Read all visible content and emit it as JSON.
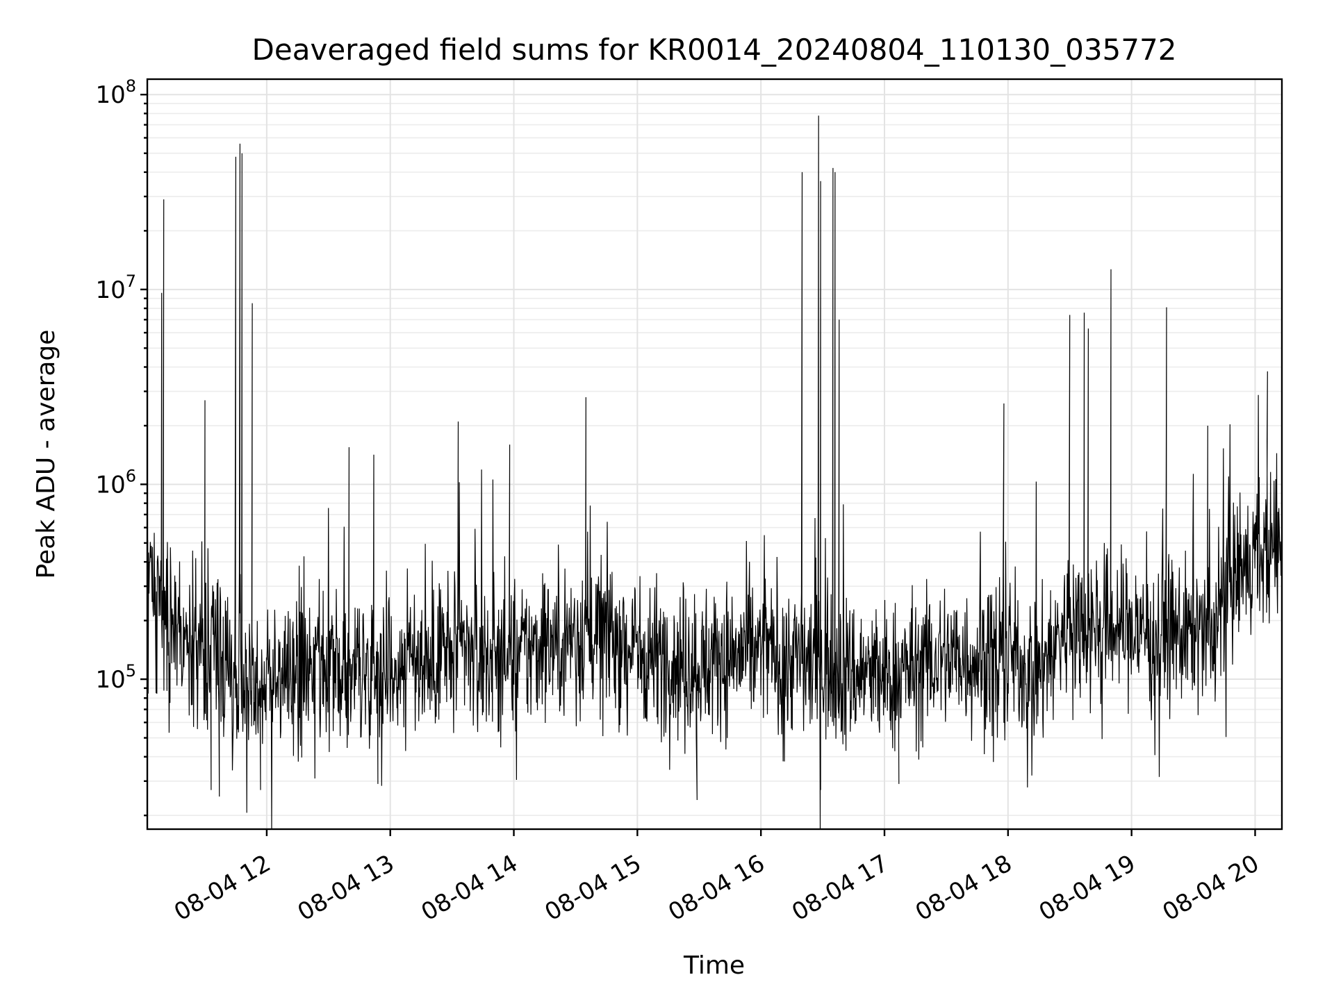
{
  "chart_data": {
    "type": "line",
    "title": "Deaveraged field sums for KR0014_20240804_110130_035772",
    "xlabel": "Time",
    "ylabel": "Peak ADU - average",
    "y_scale": "log",
    "ylim": [
      17000,
      120000000
    ],
    "xlim": [
      "2024-08-04T11:02:00",
      "2024-08-04T20:13:00"
    ],
    "grid": true,
    "x_ticks": [
      {
        "time": "2024-08-04T12:00:00",
        "label": "08-04 12"
      },
      {
        "time": "2024-08-04T13:00:00",
        "label": "08-04 13"
      },
      {
        "time": "2024-08-04T14:00:00",
        "label": "08-04 14"
      },
      {
        "time": "2024-08-04T15:00:00",
        "label": "08-04 15"
      },
      {
        "time": "2024-08-04T16:00:00",
        "label": "08-04 16"
      },
      {
        "time": "2024-08-04T17:00:00",
        "label": "08-04 17"
      },
      {
        "time": "2024-08-04T18:00:00",
        "label": "08-04 18"
      },
      {
        "time": "2024-08-04T19:00:00",
        "label": "08-04 19"
      },
      {
        "time": "2024-08-04T20:00:00",
        "label": "08-04 20"
      }
    ],
    "y_ticks": [
      {
        "value": 100000,
        "base": "10",
        "exp": "5"
      },
      {
        "value": 1000000,
        "base": "10",
        "exp": "6"
      },
      {
        "value": 10000000,
        "base": "10",
        "exp": "7"
      },
      {
        "value": 100000000,
        "base": "10",
        "exp": "8"
      }
    ],
    "series": [
      {
        "color": "#000000",
        "baseline": [
          [
            "2024-08-04T11:02:00",
            300000
          ],
          [
            "2024-08-04T11:10:00",
            200000
          ],
          [
            "2024-08-04T11:20:00",
            150000
          ],
          [
            "2024-08-04T11:30:00",
            130000
          ],
          [
            "2024-08-04T11:45:00",
            110000
          ],
          [
            "2024-08-04T12:00:00",
            100000
          ],
          [
            "2024-08-04T12:30:00",
            105000
          ],
          [
            "2024-08-04T13:00:00",
            120000
          ],
          [
            "2024-08-04T13:30:00",
            140000
          ],
          [
            "2024-08-04T14:00:00",
            130000
          ],
          [
            "2024-08-04T14:30:00",
            170000
          ],
          [
            "2024-08-04T14:45:00",
            180000
          ],
          [
            "2024-08-04T15:00:00",
            140000
          ],
          [
            "2024-08-04T15:30:00",
            120000
          ],
          [
            "2024-08-04T16:00:00",
            140000
          ],
          [
            "2024-08-04T16:30:00",
            120000
          ],
          [
            "2024-08-04T17:00:00",
            100000
          ],
          [
            "2024-08-04T17:30:00",
            130000
          ],
          [
            "2024-08-04T18:00:00",
            130000
          ],
          [
            "2024-08-04T18:15:00",
            110000
          ],
          [
            "2024-08-04T18:30:00",
            200000
          ],
          [
            "2024-08-04T19:00:00",
            180000
          ],
          [
            "2024-08-04T19:30:00",
            170000
          ],
          [
            "2024-08-04T19:40:00",
            160000
          ],
          [
            "2024-08-04T19:45:00",
            300000
          ],
          [
            "2024-08-04T20:00:00",
            400000
          ],
          [
            "2024-08-04T20:13:00",
            500000
          ]
        ],
        "spikes": [
          [
            "2024-08-04T11:10:00",
            29000000
          ],
          [
            "2024-08-04T11:09:00",
            9600000
          ],
          [
            "2024-08-04T11:30:00",
            2700000
          ],
          [
            "2024-08-04T11:45:00",
            48000000
          ],
          [
            "2024-08-04T11:47:00",
            56000000
          ],
          [
            "2024-08-04T11:48:00",
            50000000
          ],
          [
            "2024-08-04T11:53:00",
            8500000
          ],
          [
            "2024-08-04T12:40:00",
            1550000
          ],
          [
            "2024-08-04T12:52:00",
            1420000
          ],
          [
            "2024-08-04T13:33:00",
            2100000
          ],
          [
            "2024-08-04T13:58:00",
            1600000
          ],
          [
            "2024-08-04T14:35:00",
            2800000
          ],
          [
            "2024-08-04T16:20:00",
            40000000
          ],
          [
            "2024-08-04T16:28:00",
            78000000
          ],
          [
            "2024-08-04T16:29:00",
            36000000
          ],
          [
            "2024-08-04T16:35:00",
            42000000
          ],
          [
            "2024-08-04T16:36:00",
            40000000
          ],
          [
            "2024-08-04T16:38:00",
            7000000
          ],
          [
            "2024-08-04T17:58:00",
            2600000
          ],
          [
            "2024-08-04T18:30:00",
            7400000
          ],
          [
            "2024-08-04T18:37:00",
            7600000
          ],
          [
            "2024-08-04T18:39:00",
            6300000
          ],
          [
            "2024-08-04T18:50:00",
            12700000
          ],
          [
            "2024-08-04T19:17:00",
            8100000
          ],
          [
            "2024-08-04T19:37:00",
            2000000
          ],
          [
            "2024-08-04T20:06:00",
            3800000
          ]
        ],
        "dips": [
          [
            "2024-08-04T11:33:00",
            27000
          ],
          [
            "2024-08-04T11:37:00",
            25000
          ],
          [
            "2024-08-04T11:57:00",
            27000
          ],
          [
            "2024-08-04T12:54:00",
            29000
          ],
          [
            "2024-08-04T15:29:00",
            24000
          ],
          [
            "2024-08-04T16:29:00",
            27000
          ],
          [
            "2024-08-04T17:07:00",
            29000
          ]
        ]
      }
    ]
  }
}
